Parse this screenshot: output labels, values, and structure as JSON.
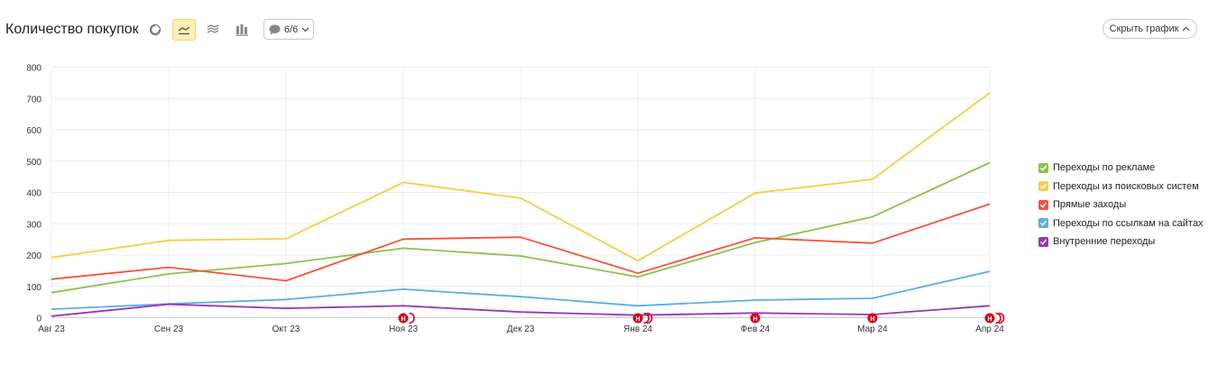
{
  "header": {
    "title": "Количество покупок",
    "annotations_label": "6/6",
    "hide_chart_label": "Скрыть график"
  },
  "toolbar_icons": [
    "pie-chart-icon",
    "line-chart-icon",
    "area-chart-icon",
    "bar-chart-icon"
  ],
  "colors": {
    "ads": "#8bc34a",
    "search": "#f7cd45",
    "direct": "#f4533a",
    "links": "#5aaee8",
    "internal": "#9c34b6",
    "annotation": "#d8001c",
    "active_tool_bg": "#fff0b3"
  },
  "chart_data": {
    "type": "line",
    "categories": [
      "Авг 23",
      "Сен 23",
      "Окт 23",
      "Ноя 23",
      "Дек 23",
      "Янв 24",
      "Фев 24",
      "Мар 24",
      "Апр 24"
    ],
    "ylim": [
      0,
      800
    ],
    "yticks": [
      "0",
      "100",
      "200",
      "300",
      "400",
      "500",
      "600",
      "700",
      "800"
    ],
    "grid": true,
    "legend_position": "right",
    "series": [
      {
        "name": "Переходы по рекламе",
        "color": "#8bc34a",
        "values": [
          80,
          140,
          173,
          222,
          197,
          130,
          240,
          322,
          495
        ]
      },
      {
        "name": "Переходы из поисковых систем",
        "color": "#f7cd45",
        "values": [
          192,
          247,
          252,
          432,
          382,
          182,
          398,
          442,
          718
        ]
      },
      {
        "name": "Прямые заходы",
        "color": "#f4533a",
        "values": [
          123,
          161,
          118,
          251,
          257,
          142,
          255,
          238,
          363
        ]
      },
      {
        "name": "Переходы по ссылкам на сайтах",
        "color": "#5aaee8",
        "values": [
          27,
          44,
          58,
          91,
          67,
          38,
          56,
          62,
          148
        ]
      },
      {
        "name": "Внутренние переходы",
        "color": "#9c34b6",
        "values": [
          5,
          43,
          30,
          38,
          18,
          8,
          15,
          10,
          38
        ]
      }
    ],
    "annotations": [
      {
        "category": "Ноя 23",
        "label": "Н",
        "count": 2
      },
      {
        "category": "Янв 24",
        "label": "Н",
        "count": 3
      },
      {
        "category": "Фев 24",
        "label": "Н",
        "count": 1
      },
      {
        "category": "Мар 24",
        "label": "Н",
        "count": 1
      },
      {
        "category": "Апр 24",
        "label": "Н",
        "count": 3
      }
    ]
  }
}
